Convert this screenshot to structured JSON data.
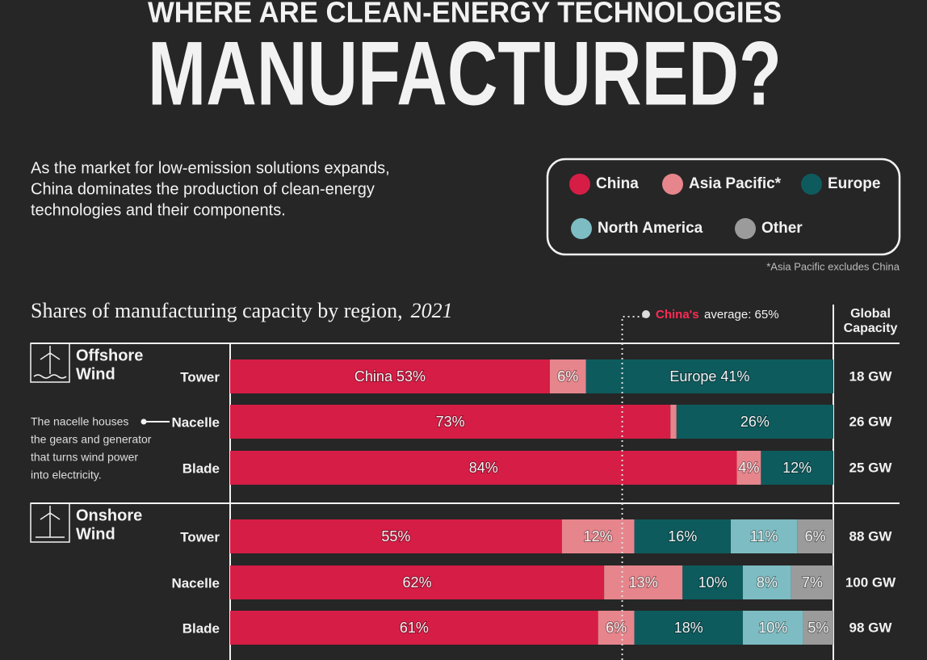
{
  "header": {
    "kicker": "WHERE ARE CLEAN-ENERGY TECHNOLOGIES",
    "title": "MANUFACTURED?"
  },
  "intro": [
    "As the market for low-emission solutions expands,",
    "China dominates the production of clean-energy",
    "technologies and their components."
  ],
  "footnote": "*Asia Pacific excludes China",
  "chart_data": {
    "type": "bar",
    "orientation": "horizontal",
    "stacked": true,
    "title": "Shares of manufacturing capacity by region,",
    "year": "2021",
    "xlim": [
      0,
      100
    ],
    "average": {
      "name": "China's",
      "value": 65,
      "label": "average: 65%"
    },
    "capacity_title": [
      "Global",
      "Capacity"
    ],
    "group_labels": [
      [
        "Offshore",
        "Wind"
      ],
      null,
      null,
      [
        "Onshore",
        "Wind"
      ],
      null,
      null
    ],
    "annotation": [
      "The nacelle houses",
      "the gears and generator",
      "that turns wind power",
      "into electricity."
    ],
    "categories": [
      "Tower",
      "Nacelle",
      "Blade",
      "Tower",
      "Nacelle",
      "Blade"
    ],
    "capacity": [
      {
        "value": 18,
        "label": "18 GW"
      },
      {
        "value": 26,
        "label": "26 GW"
      },
      {
        "value": 25,
        "label": "25 GW"
      },
      {
        "value": 88,
        "label": "88 GW"
      },
      {
        "value": 100,
        "label": "100 GW"
      },
      {
        "value": 98,
        "label": "98 GW"
      }
    ],
    "series": [
      {
        "name": "China",
        "color": "#d61d46",
        "values": [
          53,
          73,
          84,
          55,
          62,
          61
        ],
        "value_labels": [
          "China  53%",
          "73%",
          "84%",
          "55%",
          "62%",
          "61%"
        ]
      },
      {
        "name": "Asia Pacific*",
        "color": "#e6858c",
        "values": [
          6,
          1,
          4,
          12,
          13,
          6
        ],
        "value_labels": [
          "6%",
          null,
          "4%",
          "12%",
          "13%",
          "6%"
        ]
      },
      {
        "name": "Europe",
        "color": "#0e5b5e",
        "values": [
          41,
          26,
          12,
          16,
          10,
          18
        ],
        "value_labels": [
          "Europe 41%",
          "26%",
          "12%",
          "16%",
          "10%",
          "18%"
        ]
      },
      {
        "name": "North America",
        "color": "#7dbcc2",
        "values": [
          null,
          null,
          null,
          11,
          8,
          10
        ],
        "value_labels": [
          null,
          null,
          null,
          "11%",
          "8%",
          "10%"
        ]
      },
      {
        "name": "Other",
        "color": "#9b9b9b",
        "values": [
          null,
          null,
          null,
          6,
          7,
          5
        ],
        "value_labels": [
          null,
          null,
          null,
          "6%",
          "7%",
          "5%"
        ]
      }
    ]
  }
}
